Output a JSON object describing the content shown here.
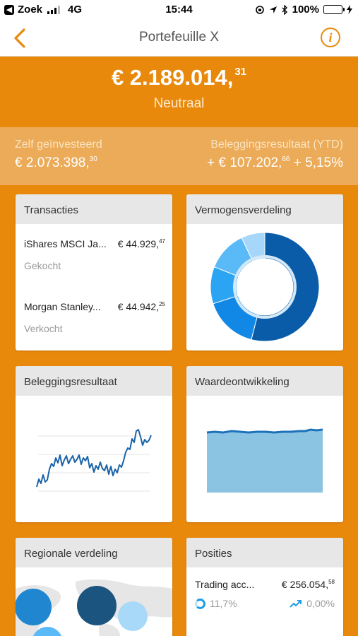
{
  "status_bar": {
    "back_app": "Zoek",
    "network": "4G",
    "time": "15:44",
    "battery": "100%"
  },
  "nav": {
    "title": "Portefeuille X",
    "info_label": "i"
  },
  "portfolio": {
    "total_main": "€ 2.189.014,",
    "total_cents": "31",
    "status": "Neutraal"
  },
  "summary": {
    "invested_label": "Zelf geïnvesteerd",
    "invested_main": "€ 2.073.398,",
    "invested_cents": "30",
    "result_label": "Beleggingsresultaat (YTD)",
    "result_main": "+ € 107.202,",
    "result_cents": "66",
    "result_pct": " + 5,15%"
  },
  "cards": {
    "transactions": {
      "title": "Transacties",
      "items": [
        {
          "name": "iShares MSCI Ja...",
          "amount_main": "€ 44.929,",
          "amount_cents": "47",
          "type": "Gekocht"
        },
        {
          "name": "Morgan Stanley...",
          "amount_main": "€ 44.942,",
          "amount_cents": "25",
          "type": "Verkocht"
        }
      ]
    },
    "allocation": {
      "title": "Vermogensverdeling",
      "segments": [
        {
          "value": 54,
          "color": "#0A5CA8"
        },
        {
          "value": 16,
          "color": "#1288E6"
        },
        {
          "value": 11,
          "color": "#2CA4F4"
        },
        {
          "value": 12,
          "color": "#5AB9F7"
        },
        {
          "value": 7,
          "color": "#A6D7FA"
        }
      ]
    },
    "investment_result": {
      "title": "Beleggingsresultaat",
      "line_color": "#1B64A8"
    },
    "value_development": {
      "title": "Waardeontwikkeling",
      "fill_color": "#8BC3E3",
      "line_color": "#1B72B8"
    },
    "regional": {
      "title": "Regionale verdeling"
    },
    "positions": {
      "title": "Posities",
      "items": [
        {
          "name": "Trading acc...",
          "amount_main": "€ 256.054,",
          "amount_cents": "58",
          "allocation_pct": "11,7%",
          "performance_pct": "0,00%"
        }
      ]
    }
  }
}
